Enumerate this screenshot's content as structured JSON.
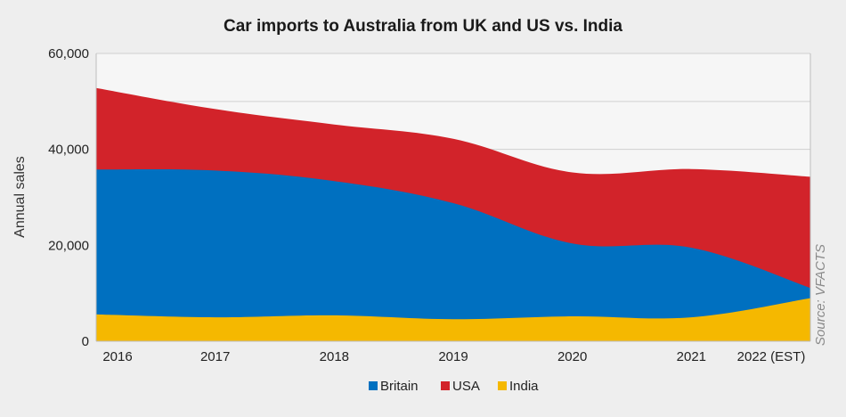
{
  "chart_data": {
    "type": "area",
    "stacked": true,
    "title": "Car imports to Australia from UK and US vs. India",
    "ylabel": "Annual sales",
    "xlabel": "",
    "source": "Source: VFACTS",
    "categories": [
      "2016",
      "2017",
      "2018",
      "2019",
      "2020",
      "2021",
      "2022 (EST)"
    ],
    "ylim": [
      0,
      60000
    ],
    "yticks": [
      0,
      20000,
      40000,
      60000
    ],
    "ytick_labels": [
      "0",
      "20,000",
      "40,000",
      "60,000"
    ],
    "grid": true,
    "legend_position": "bottom",
    "series": [
      {
        "name": "India",
        "color": "#f5b800",
        "values": [
          5600,
          5000,
          5400,
          4600,
          5200,
          5000,
          9000
        ]
      },
      {
        "name": "Britain",
        "color": "#0070c0",
        "values": [
          30200,
          30600,
          28000,
          24200,
          15200,
          14500,
          2100
        ]
      },
      {
        "name": "USA",
        "color": "#d2232a",
        "values": [
          17000,
          12800,
          11800,
          13400,
          14800,
          16400,
          23200
        ]
      }
    ],
    "legend": [
      "Britain",
      "USA",
      "India"
    ]
  }
}
